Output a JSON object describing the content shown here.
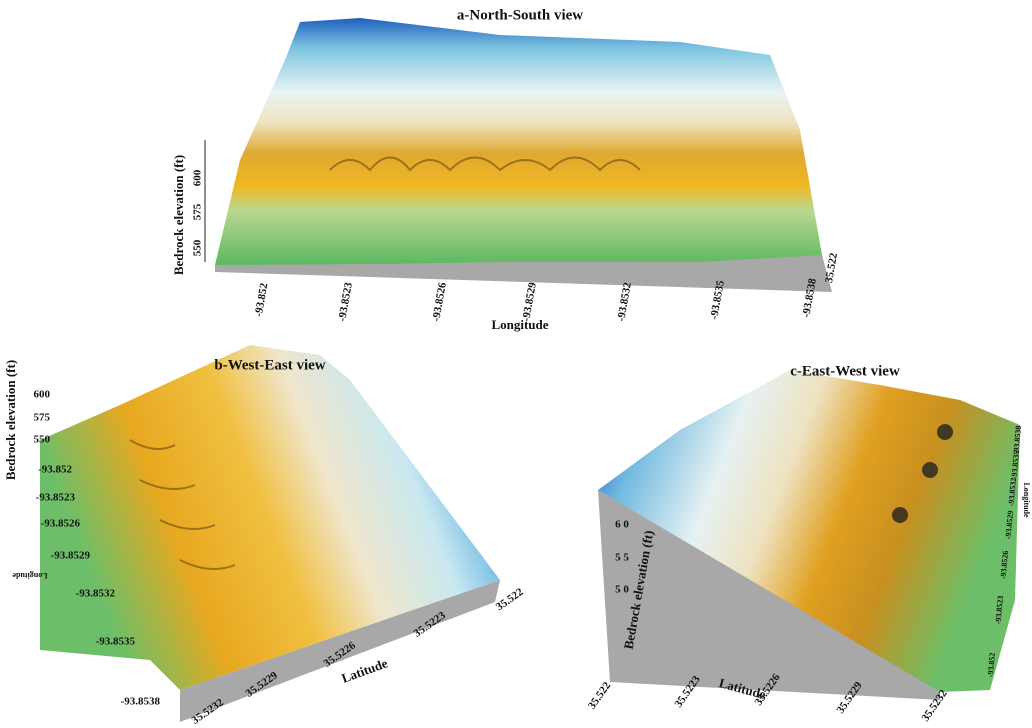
{
  "panels": [
    {
      "title": "a-North-South view",
      "z_label": "Bedrock elevation (ft)",
      "z_ticks": [
        "600",
        "575",
        "550"
      ],
      "x_label": "Longitude",
      "x_ticks": [
        "-93.852",
        "-93.8523",
        "-93.8526",
        "-93.8529",
        "-93.8532",
        "-93.8535",
        "-93.8538"
      ],
      "side_tick": "35.522"
    },
    {
      "title": "b-West-East view",
      "z_label": "Bedrock elevation (ft)",
      "z_ticks": [
        "600",
        "575",
        "550"
      ],
      "y_label": "Longitude",
      "y_ticks": [
        "-93.852",
        "-93.8523",
        "-93.8526",
        "-93.8529",
        "-93.8532",
        "-93.8535",
        "-93.8538"
      ],
      "x_label": "Latitude",
      "x_ticks": [
        "35.5232",
        "35.5229",
        "35.5226",
        "35.5223",
        "35.522"
      ]
    },
    {
      "title": "c-East-West view",
      "z_label": "Bedrock elevation (ft)",
      "z_ticks": [
        "6 0",
        "5 5",
        "5 0"
      ],
      "x_label": "Latitude",
      "x_ticks": [
        "35.522",
        "35.5223",
        "35.5226",
        "35.5229",
        "35.5232"
      ],
      "y_label": "Longitude",
      "y_ticks": [
        "-93.852",
        "-93.8523",
        "-93.8526",
        "-93.8529",
        "-93.8532",
        "-93.8535",
        "-93.8538"
      ]
    }
  ]
}
